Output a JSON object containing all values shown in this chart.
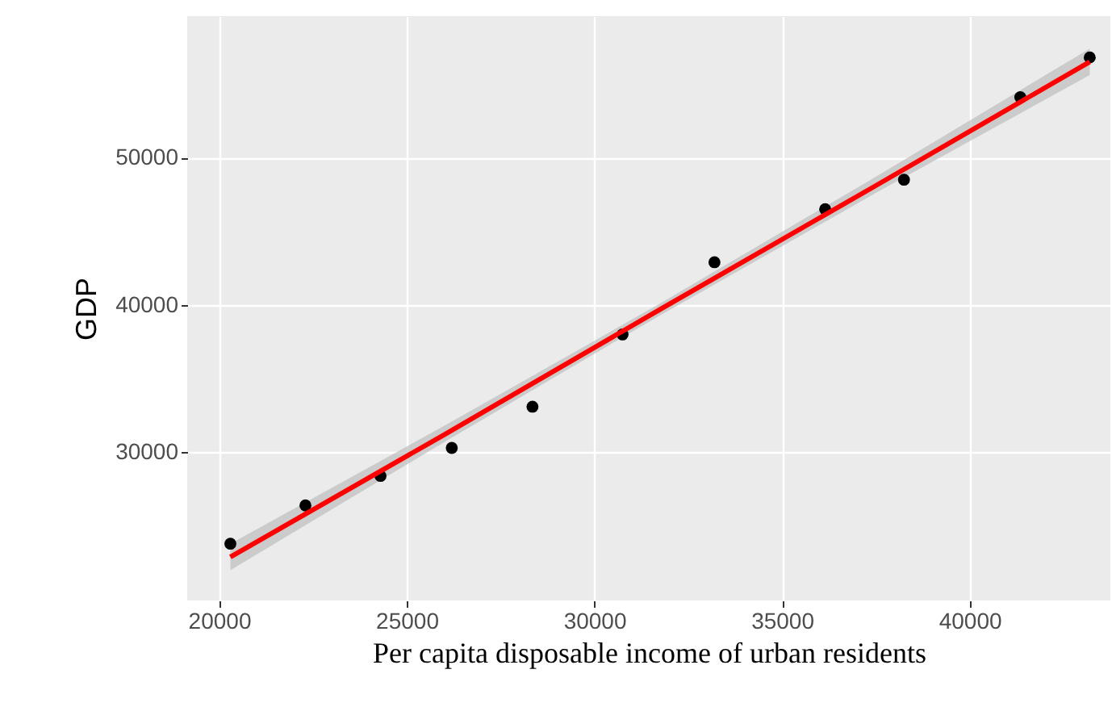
{
  "chart_data": {
    "type": "scatter",
    "xlabel": "Per capita disposable income of urban residents",
    "ylabel": "GDP",
    "xlim": [
      19150,
      43750
    ],
    "ylim": [
      19950,
      59600
    ],
    "xticks": [
      20000,
      25000,
      30000,
      35000,
      40000
    ],
    "yticks": [
      30000,
      40000,
      50000
    ],
    "grid": true,
    "series": [
      {
        "color": "#000000",
        "marker": "circle",
        "x": [
          20300,
          22300,
          24300,
          26200,
          28350,
          30750,
          33200,
          36150,
          38250,
          41350,
          43200
        ],
        "values": [
          23800,
          26400,
          28400,
          30300,
          33100,
          38000,
          42900,
          46500,
          48500,
          54100,
          56800
        ]
      },
      {
        "type": "line",
        "color": "#ff0000",
        "x": [
          20300,
          26000,
          31750,
          37500,
          43200
        ],
        "values": [
          22900,
          31200,
          39700,
          48100,
          56500
        ],
        "lower": [
          22000,
          30700,
          39300,
          47600,
          55600
        ],
        "upper": [
          23800,
          31800,
          40100,
          48700,
          57400
        ]
      }
    ]
  }
}
